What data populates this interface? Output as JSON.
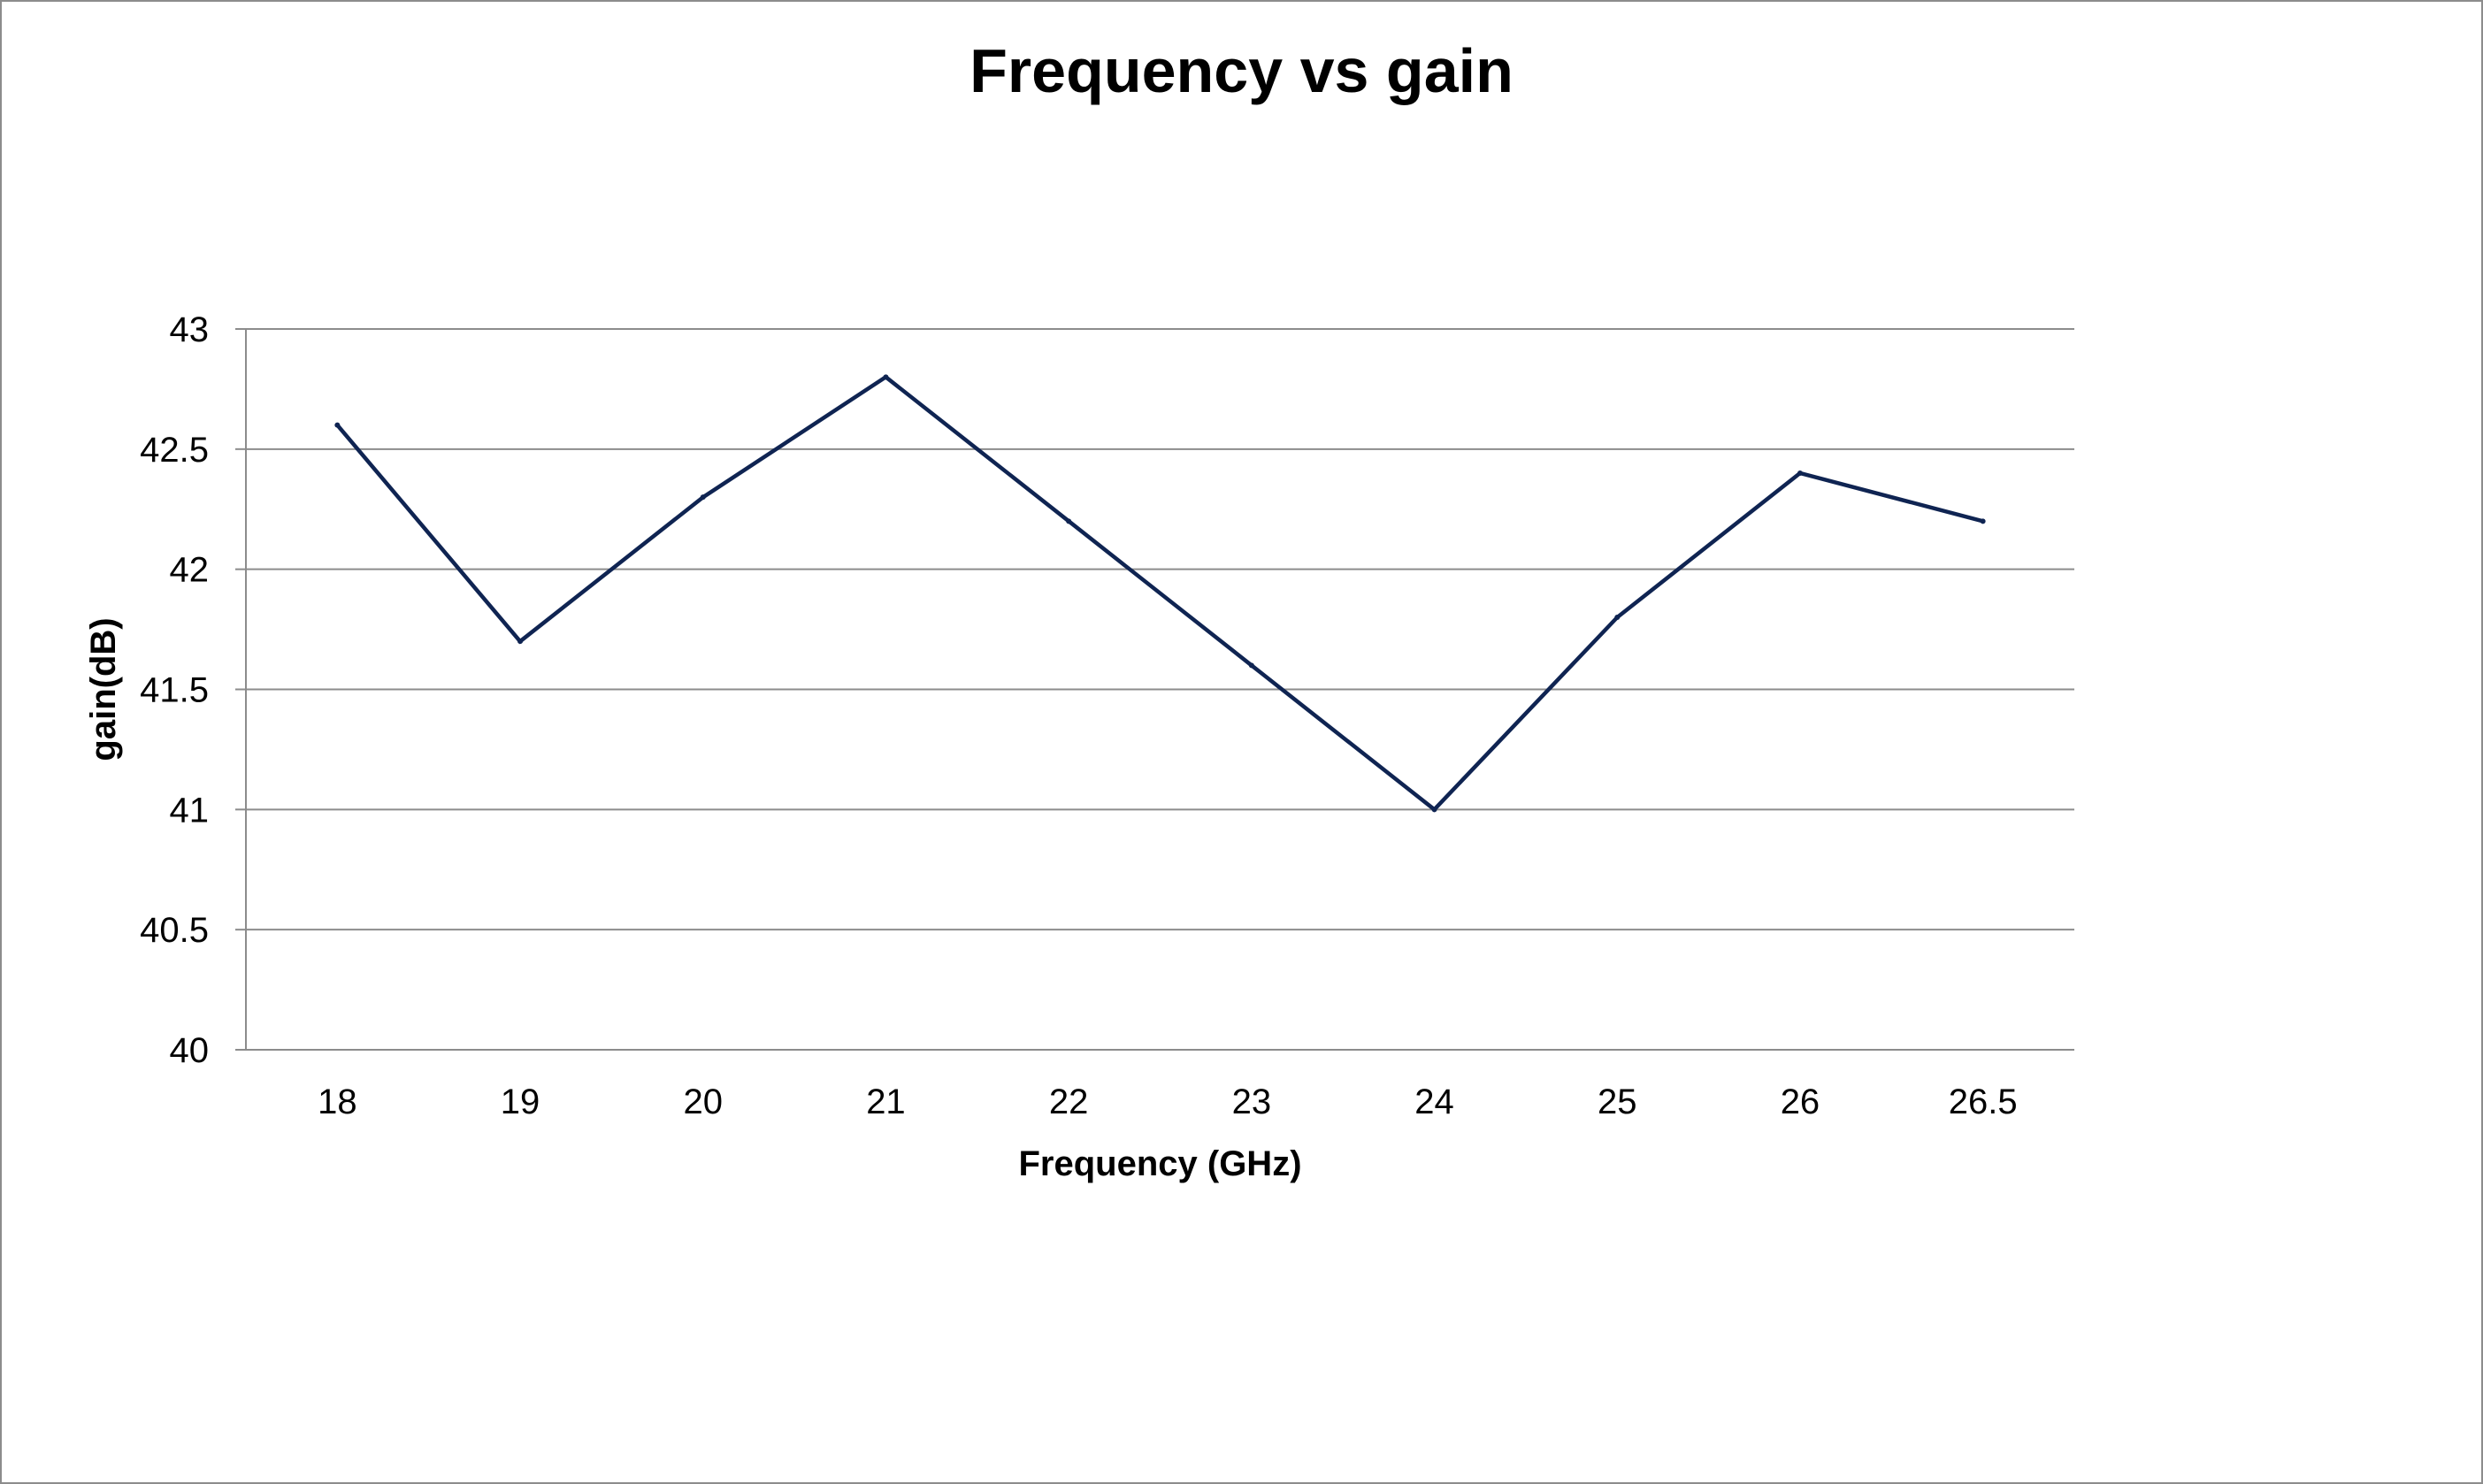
{
  "chart_data": {
    "type": "line",
    "title": "Frequency vs gain",
    "xlabel": "Frequency (GHz)",
    "ylabel": "gain(dB)",
    "categories": [
      "18",
      "19",
      "20",
      "21",
      "22",
      "23",
      "24",
      "25",
      "26",
      "26.5"
    ],
    "series": [
      {
        "values": [
          42.6,
          41.7,
          42.3,
          42.8,
          42.2,
          41.6,
          41.0,
          41.8,
          42.4,
          42.2
        ]
      }
    ],
    "ylim": [
      40,
      43
    ],
    "yticks": [
      "40",
      "40.5",
      "41",
      "41.5",
      "42",
      "42.5",
      "43"
    ],
    "grid": true,
    "legend": "none",
    "colors": {
      "line": "#0f2452",
      "grid": "#8c8c8c"
    }
  }
}
